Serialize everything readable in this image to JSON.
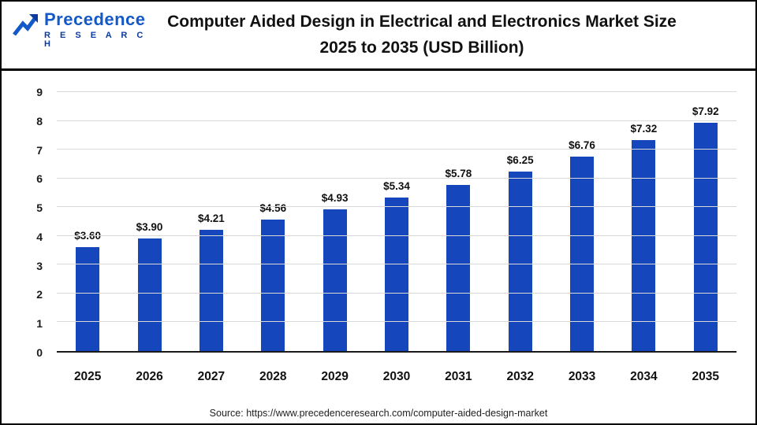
{
  "logo": {
    "name": "Precedence",
    "sub": "R E S E A R C H"
  },
  "header": {
    "title_lines": [
      "Computer Aided Design in Electrical and Electronics Market Size",
      "2025 to 2035 (USD Billion)"
    ]
  },
  "footer": {
    "source": "Source: https://www.precedenceresearch.com/computer-aided-design-market"
  },
  "colors": {
    "bar": "#1546bb",
    "grid": "#d9d9d9",
    "axis": "#1a1a1a",
    "logo_blue": "#1558c8",
    "logo_dark": "#0d3a9e"
  },
  "chart_data": {
    "type": "bar",
    "title": "Computer Aided Design in Electrical and Electronics Market Size 2025 to 2035 (USD Billion)",
    "categories": [
      "2025",
      "2026",
      "2027",
      "2028",
      "2029",
      "2030",
      "2031",
      "2032",
      "2033",
      "2034",
      "2035"
    ],
    "values": [
      3.6,
      3.9,
      4.21,
      4.56,
      4.93,
      5.34,
      5.78,
      6.25,
      6.76,
      7.32,
      7.92
    ],
    "labels": [
      "$3.60",
      "$3.90",
      "$4.21",
      "$4.56",
      "$4.93",
      "$5.34",
      "$5.78",
      "$6.25",
      "$6.76",
      "$7.32",
      "$7.92"
    ],
    "xlabel": "",
    "ylabel": "",
    "ylim": [
      0,
      9
    ],
    "yticks": [
      0,
      1,
      2,
      3,
      4,
      5,
      6,
      7,
      8,
      9
    ],
    "grid": "horizontal",
    "legend": "none",
    "unit": "USD Billion"
  }
}
